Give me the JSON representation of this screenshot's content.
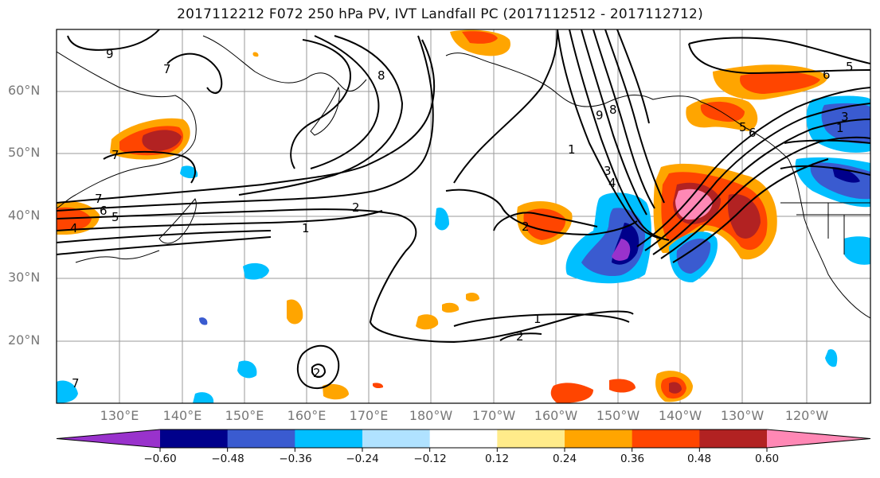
{
  "title": "2017112212 F072 250 hPa PV, IVT Landfall PC (2017112512 - 2017112712)",
  "lat_labels": [
    "60°N",
    "50°N",
    "40°N",
    "30°N",
    "20°N"
  ],
  "lon_labels": [
    "130°E",
    "140°E",
    "150°E",
    "160°E",
    "170°E",
    "180°W",
    "170°W",
    "160°W",
    "150°W",
    "140°W",
    "130°W",
    "120°W"
  ],
  "colorbar": {
    "colors": [
      "#9932cc",
      "#00008b",
      "#3a5bd0",
      "#00bfff",
      "#b0e2ff",
      "#ffffff",
      "#ffeb8a",
      "#ffa500",
      "#ff4500",
      "#b22222",
      "#ff88b5"
    ],
    "ticks": [
      "−0.60",
      "−0.48",
      "−0.36",
      "−0.24",
      "−0.12",
      "0.12",
      "0.24",
      "0.36",
      "0.48",
      "0.60"
    ]
  },
  "contour_labels": [
    "9",
    "7",
    "8",
    "7",
    "6",
    "5",
    "4",
    "2",
    "1",
    "1",
    "2",
    "1",
    "2",
    "7",
    "2",
    "9",
    "8",
    "3",
    "4",
    "5",
    "6",
    "6",
    "5",
    "3",
    "1",
    "7"
  ]
}
